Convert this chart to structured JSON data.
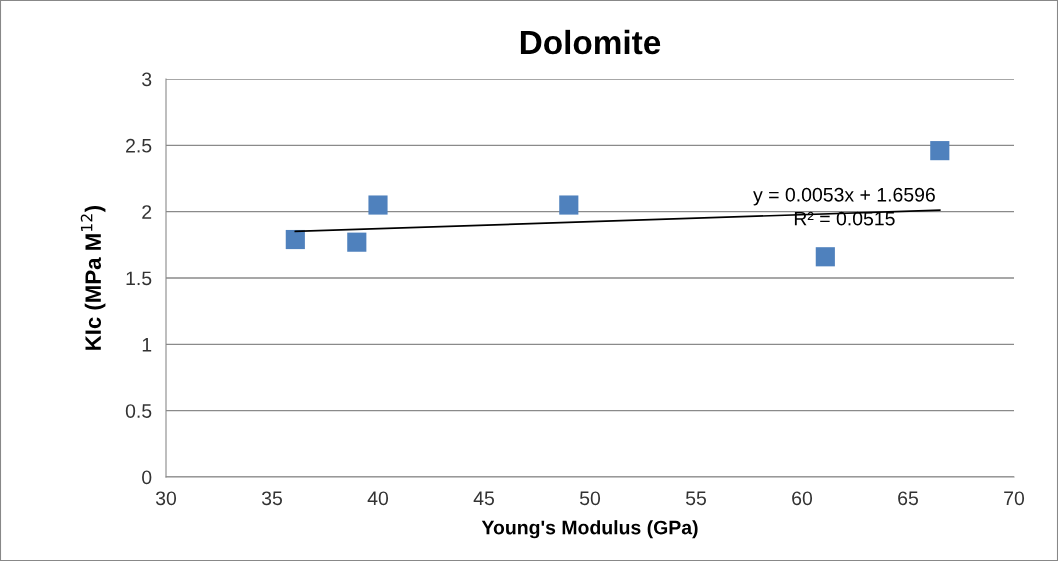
{
  "chart_data": {
    "type": "scatter",
    "title": "Dolomite",
    "xlabel": "Young's Modulus (GPa)",
    "ylabel": "KIc (MPa M$^{12}$)",
    "x": [
      36.1,
      39.0,
      40.0,
      49.0,
      61.1,
      66.5
    ],
    "series": [
      {
        "color": "#4f81bd",
        "marker": "square",
        "values": [
          1.79,
          1.77,
          2.05,
          2.05,
          1.66,
          2.46
        ]
      },
      {
        "type": "line",
        "color": "#000000",
        "x": [
          36.1,
          66.5
        ],
        "values": [
          1.851,
          2.012
        ]
      }
    ],
    "xlim": [
      30,
      70
    ],
    "xticks": [
      30,
      35,
      40,
      45,
      50,
      55,
      60,
      65,
      70
    ],
    "ylim": [
      0,
      3
    ],
    "yticks": [
      0,
      0.5,
      1,
      1.5,
      2,
      2.5,
      3
    ],
    "grid": "y",
    "annotations": [
      "y = 0.0053x + 1.6596",
      "R² = 0.0515"
    ]
  }
}
